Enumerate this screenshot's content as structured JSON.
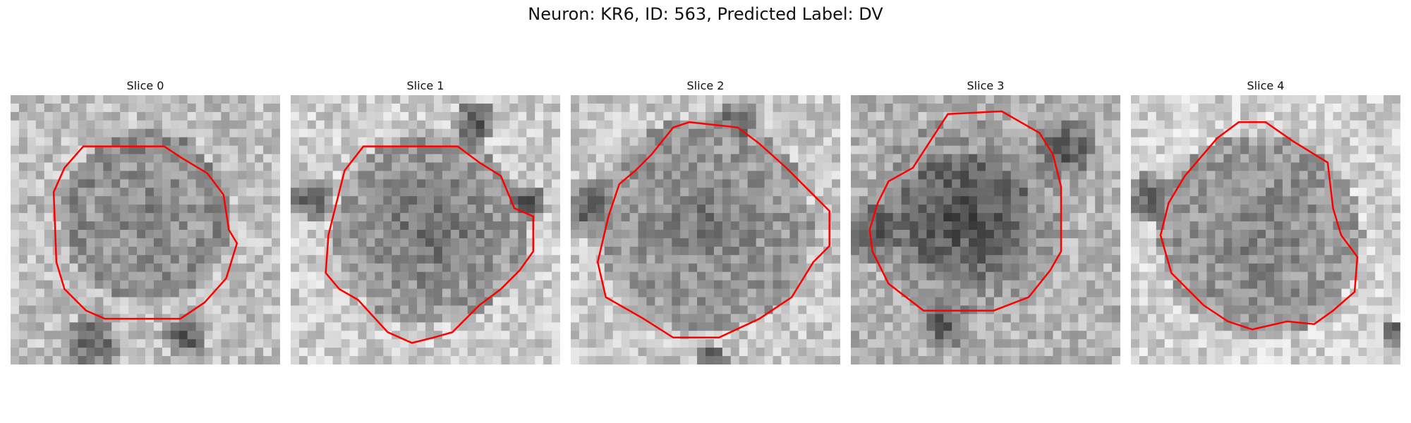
{
  "figure": {
    "title": "Neuron: KR6, ID: 563, Predicted Label: DV"
  },
  "slices": [
    {
      "title": "Slice 0"
    },
    {
      "title": "Slice 1"
    },
    {
      "title": "Slice 2"
    },
    {
      "title": "Slice 3"
    },
    {
      "title": "Slice 4"
    }
  ],
  "colors": {
    "contour": "#ff0000",
    "background": "#ffffff"
  }
}
